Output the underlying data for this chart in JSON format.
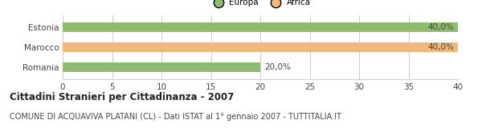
{
  "categories": [
    "Estonia",
    "Marocco",
    "Romania"
  ],
  "values": [
    40.0,
    40.0,
    20.0
  ],
  "bar_colors": [
    "#8fbc6e",
    "#f0b87a",
    "#8fbc6e"
  ],
  "continent_labels": [
    "Europa",
    "Africa"
  ],
  "continent_colors": [
    "#8fbc6e",
    "#f0b87a"
  ],
  "bar_labels": [
    "40,0%",
    "40,0%",
    "20,0%"
  ],
  "label_inside": [
    true,
    true,
    false
  ],
  "xlim": [
    0,
    40
  ],
  "xticks": [
    0,
    5,
    10,
    15,
    20,
    25,
    30,
    35,
    40
  ],
  "title": "Cittadini Stranieri per Cittadinanza - 2007",
  "subtitle": "COMUNE DI ACQUAVIVA PLATANI (CL) - Dati ISTAT al 1° gennaio 2007 - TUTTITALIA.IT",
  "background_color": "#ffffff",
  "grid_color": "#cccccc",
  "bar_height": 0.5,
  "title_fontsize": 8.5,
  "subtitle_fontsize": 7,
  "tick_fontsize": 7.5,
  "label_fontsize": 7.5
}
